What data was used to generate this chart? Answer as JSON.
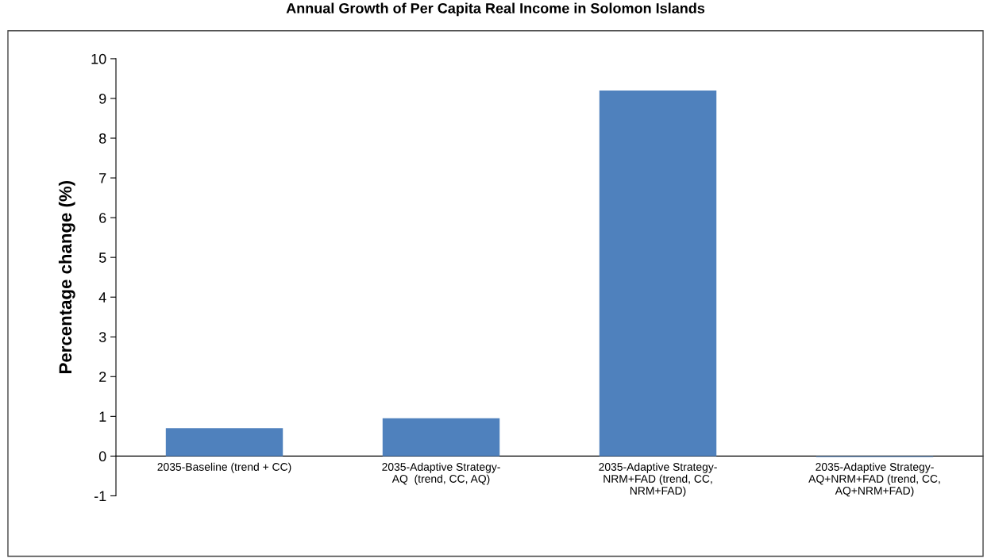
{
  "chart_data": {
    "type": "bar",
    "title": "Annual Growth of Per Capita Real Income in Solomon Islands",
    "ylabel": "Percentage change (%)",
    "categories": [
      "2035-Baseline (trend + CC)",
      "2035-Adaptive Strategy-\nAQ  (trend, CC, AQ)",
      "2035-Adaptive Strategy-\nNRM+FAD (trend, CC,\nNRM+FAD)",
      "2035-Adaptive Strategy-\nAQ+NRM+FAD (trend, CC,\nAQ+NRM+FAD)"
    ],
    "values": [
      0.7,
      0.95,
      9.2,
      -0.02
    ],
    "color": "#4f81bd",
    "ylim": [
      -1,
      10
    ],
    "yticks": [
      -1,
      0,
      1,
      2,
      3,
      4,
      5,
      6,
      7,
      8,
      9,
      10
    ],
    "grid": false,
    "legend": false
  }
}
